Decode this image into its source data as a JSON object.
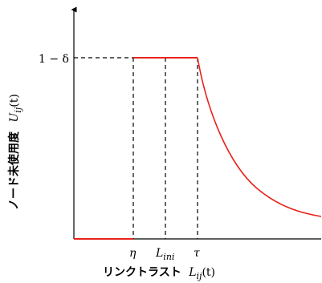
{
  "chart_data": {
    "type": "line",
    "xlabel_jp": "リンクトラスト",
    "xlabel_math": "L",
    "xlabel_sub": "ij",
    "xlabel_arg": "(t)",
    "ylabel_jp": "ノード未使用度",
    "ylabel_math": "U",
    "ylabel_sub": "ij",
    "ylabel_arg": "(t)",
    "y_tick": "1 − δ",
    "x_ticks": {
      "eta": "η",
      "l_ini_main": "L",
      "l_ini_sub": "ini",
      "tau": "τ"
    },
    "curve_color": "#e8231b",
    "axis_color": "#000000"
  }
}
